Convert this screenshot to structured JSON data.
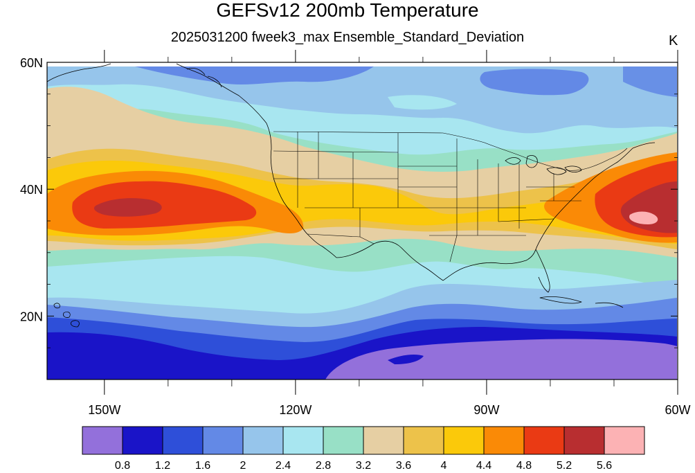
{
  "title": "GEFSv12 200mb Temperature",
  "subtitle": "2025031200 fweek3_max Ensemble_Standard_Deviation",
  "units": "K",
  "axes": {
    "lat_labels": [
      {
        "label": "60N",
        "value": 60
      },
      {
        "label": "40N",
        "value": 40
      },
      {
        "label": "20N",
        "value": 20
      }
    ],
    "lon_labels": [
      {
        "label": "150W",
        "value": -150
      },
      {
        "label": "120W",
        "value": -120
      },
      {
        "label": "90W",
        "value": -90
      },
      {
        "label": "60W",
        "value": -60
      }
    ],
    "lat_range": [
      10,
      60
    ],
    "lon_range": [
      -159,
      -60
    ]
  },
  "colorbar": {
    "colors": [
      "#9370db",
      "#1a14c8",
      "#2e4fd9",
      "#6389e6",
      "#96c5eb",
      "#a8e6f0",
      "#98e0c6",
      "#e6cfa3",
      "#edc24a",
      "#fbc90a",
      "#fa8a06",
      "#ea3a14",
      "#b82e30",
      "#fcb2b4"
    ],
    "labels": [
      "0.8",
      "1.2",
      "1.6",
      "2",
      "2.4",
      "2.8",
      "3.2",
      "3.6",
      "4",
      "4.4",
      "4.8",
      "5.2",
      "5.6"
    ]
  }
}
